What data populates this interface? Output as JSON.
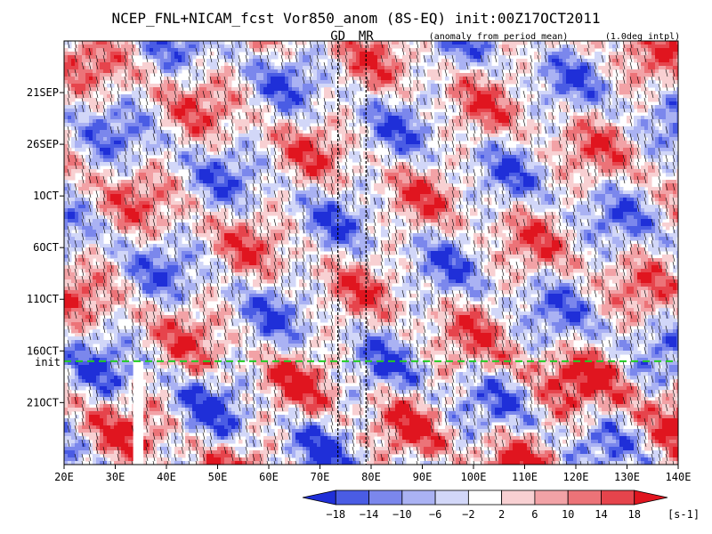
{
  "chart_data": {
    "type": "heatmap",
    "title": "NCEP_FNL+NICAM_fcst Vor850_anom (8S-EQ) init:00Z17OCT2011",
    "subtitle_left": "(anomaly from period mean)",
    "subtitle_right": "(1.0deg intpl)",
    "markers": [
      {
        "label": "GD",
        "lon": 73.5,
        "color": "#cc0000"
      },
      {
        "label": "MR",
        "lon": 79.0,
        "color": "#cc0000"
      }
    ],
    "init_label": "init",
    "init_color": "#22cc22",
    "x_axis": {
      "min": 20,
      "max": 140,
      "ticks": [
        20,
        30,
        40,
        50,
        60,
        70,
        80,
        90,
        100,
        110,
        120,
        130,
        140
      ],
      "tick_labels": [
        "20E",
        "30E",
        "40E",
        "50E",
        "60E",
        "70E",
        "80E",
        "90E",
        "100E",
        "110E",
        "120E",
        "130E",
        "140E"
      ]
    },
    "y_axis": {
      "start_day": "16SEP",
      "end_day": "27OCT",
      "ticks": [
        "21SEP",
        "26SEP",
        "1OCT",
        "6OCT",
        "11OCT",
        "16OCT",
        "21OCT"
      ],
      "init_day": "17OCT"
    },
    "colorbar": {
      "levels": [
        "-18",
        "-14",
        "-10",
        "-6",
        "-2",
        "2",
        "6",
        "10",
        "14",
        "18"
      ],
      "unit": "[s-1]",
      "colors": [
        "#1f2fd8",
        "#4a5ce4",
        "#7b87ec",
        "#aab2f3",
        "#d2d7f8",
        "#ffffff",
        "#f8d0d2",
        "#f2a2a6",
        "#ec7378",
        "#e6444c",
        "#e0151f"
      ]
    },
    "gap": {
      "lon_start": 33.5,
      "lon_end": 35.5,
      "from_day": "17OCT"
    },
    "grid": false
  }
}
